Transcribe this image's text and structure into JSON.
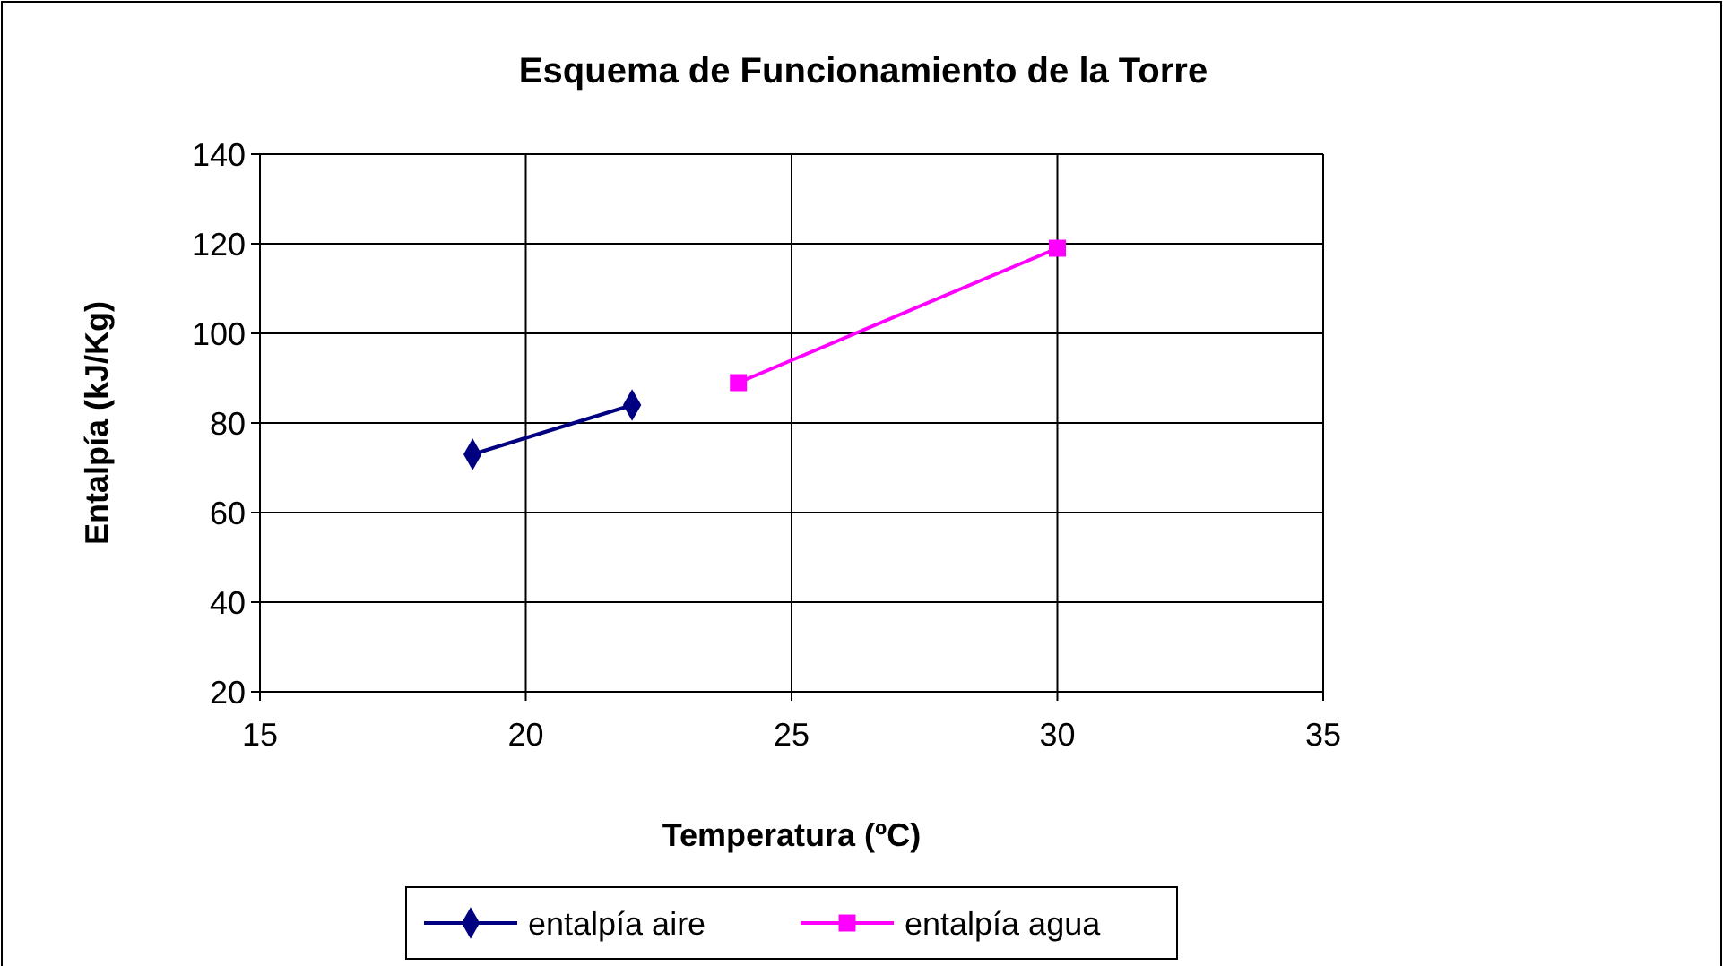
{
  "chart_data": {
    "type": "line",
    "title": "Esquema de Funcionamiento de la Torre",
    "xlabel": "Temperatura (ºC)",
    "ylabel": "Entalpía (kJ/Kg)",
    "xlim": [
      15,
      35
    ],
    "xticks": [
      15,
      20,
      25,
      30,
      35
    ],
    "ylim": [
      20,
      140
    ],
    "yticks": [
      20,
      40,
      60,
      80,
      100,
      120,
      140
    ],
    "grid": true,
    "legend": "bottom",
    "series": [
      {
        "name": "entalpía aire",
        "color": "#000080",
        "marker": "diamond",
        "x": [
          19,
          22
        ],
        "values": [
          73,
          84
        ]
      },
      {
        "name": "entalpía agua",
        "color": "#ff00ff",
        "marker": "square",
        "x": [
          24,
          30
        ],
        "values": [
          89,
          119
        ]
      }
    ]
  }
}
